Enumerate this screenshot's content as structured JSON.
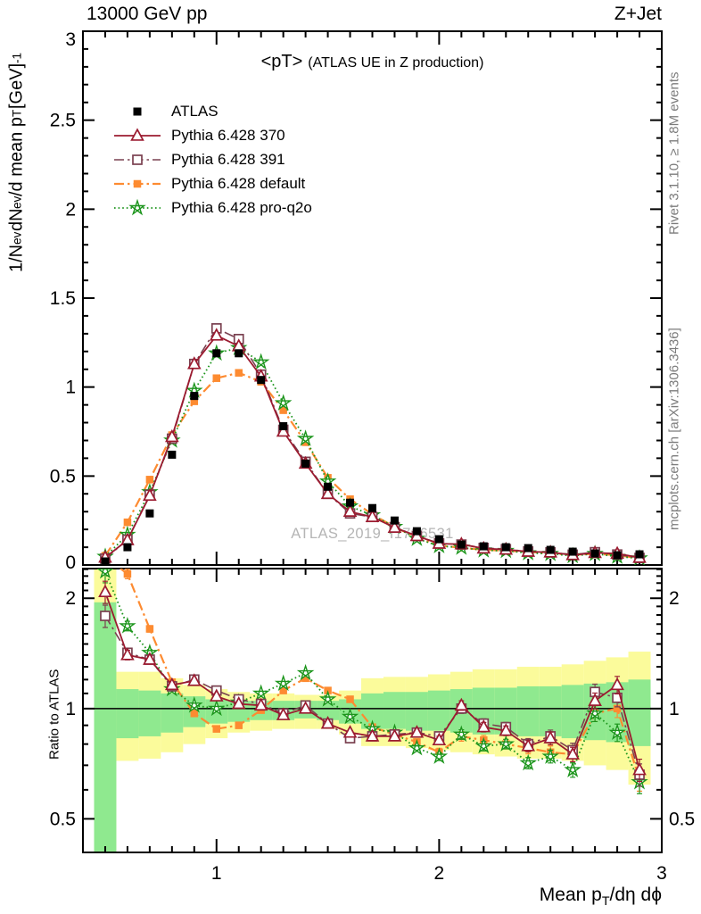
{
  "header": {
    "left": "13000 GeV pp",
    "right": "Z+Jet"
  },
  "title": {
    "main": "<pT>",
    "sub": "(ATLAS UE in Z production)"
  },
  "watermark": "ATLAS_2019_I1736531",
  "credits": {
    "top": "Rivet 3.1.10, ≥ 1.8M events",
    "bottom": "mcplots.cern.ch [arXiv:1306.3436]"
  },
  "axes": {
    "main_ylabel_parts": [
      {
        "t": "1/N"
      },
      {
        "t": "ev",
        "sub": true
      },
      {
        "t": " dN"
      },
      {
        "t": "ev",
        "sub": true
      },
      {
        "t": "/d mean p"
      },
      {
        "t": "T",
        "sub": true
      },
      {
        "t": " [GeV]"
      },
      {
        "t": "-1",
        "sup": true
      }
    ],
    "ratio_ylabel": "Ratio to ATLAS",
    "xlabel_parts": [
      {
        "t": "Mean p"
      },
      {
        "t": "T",
        "sub": true
      },
      {
        "t": "/dη dϕ"
      }
    ],
    "main_ytick_labels": [
      "0",
      "0.5",
      "1",
      "1.5",
      "2",
      "2.5",
      "3"
    ],
    "ratio_ytick_labels": [
      "0.5",
      "1",
      "2"
    ],
    "xtick_labels": [
      "1",
      "2",
      "3"
    ]
  },
  "legend": {
    "items": [
      {
        "key": "atlas",
        "label": "ATLAS"
      },
      {
        "key": "p370",
        "label": "Pythia 6.428 370"
      },
      {
        "key": "p391",
        "label": "Pythia 6.428 391"
      },
      {
        "key": "pdefault",
        "label": "Pythia 6.428 default"
      },
      {
        "key": "pq2o",
        "label": "Pythia 6.428 pro-q2o"
      }
    ]
  },
  "styles": {
    "atlas": {
      "color": "#000000",
      "marker": "square-filled",
      "size": 9,
      "line": "none",
      "width": 0
    },
    "p370": {
      "color": "#9b1b30",
      "marker": "triangle-open",
      "size": 11,
      "line": "solid",
      "width": 1.8
    },
    "p391": {
      "color": "#7a4150",
      "marker": "square-open",
      "size": 10,
      "line": "dashdot",
      "width": 1.6
    },
    "pdefault": {
      "color": "#fd8b31",
      "marker": "square-filled",
      "size": 8.5,
      "line": "dashdot",
      "width": 2.2
    },
    "pq2o": {
      "color": "#1c951c",
      "marker": "star-open",
      "size": 8,
      "line": "dotted",
      "width": 1.8
    }
  },
  "band_colors": {
    "yellow": "#fbfb9b",
    "green": "#8fe98f"
  },
  "chart_data": {
    "type": "line",
    "title": "<pT> (ATLAS UE in Z production)",
    "xlabel": "Mean pT/dη dϕ",
    "xlim": [
      0.4,
      3.0
    ],
    "xticks": [
      1,
      2,
      3
    ],
    "bin_width": 0.1,
    "x": [
      0.5,
      0.6,
      0.7,
      0.8,
      0.9,
      1.0,
      1.1,
      1.2,
      1.3,
      1.4,
      1.5,
      1.6,
      1.7,
      1.8,
      1.9,
      2.0,
      2.1,
      2.2,
      2.3,
      2.4,
      2.5,
      2.6,
      2.7,
      2.8,
      2.9
    ],
    "panels": [
      {
        "name": "main",
        "ylabel": "1/Nev dNev/d mean pT [GeV]^-1",
        "ylim": [
          0,
          3
        ],
        "ytick_step": 0.5,
        "series": [
          {
            "key": "atlas",
            "name": "ATLAS",
            "values": [
              0.02,
              0.1,
              0.29,
              0.62,
              0.95,
              1.19,
              1.19,
              1.04,
              0.78,
              0.57,
              0.44,
              0.35,
              0.32,
              0.25,
              0.19,
              0.145,
              0.115,
              0.105,
              0.1,
              0.095,
              0.085,
              0.075,
              0.065,
              0.055,
              0.06
            ]
          },
          {
            "key": "p370",
            "name": "Pythia 6.428 370",
            "values": [
              0.042,
              0.14,
              0.39,
              0.72,
              1.13,
              1.29,
              1.23,
              1.06,
              0.75,
              0.57,
              0.4,
              0.3,
              0.27,
              0.21,
              0.163,
              0.12,
              0.117,
              0.093,
              0.087,
              0.075,
              0.071,
              0.056,
              0.068,
              0.064,
              0.041
            ]
          },
          {
            "key": "p391",
            "name": "Pythia 6.428 391",
            "values": [
              0.036,
              0.142,
              0.395,
              0.71,
              1.13,
              1.33,
              1.27,
              1.07,
              0.76,
              0.58,
              0.4,
              0.29,
              0.27,
              0.213,
              0.163,
              0.122,
              0.115,
              0.096,
              0.089,
              0.076,
              0.071,
              0.058,
              0.072,
              0.059,
              0.04
            ]
          },
          {
            "key": "pdefault",
            "name": "Pythia 6.428 default",
            "values": [
              0.052,
              0.24,
              0.48,
              0.73,
              0.92,
              1.05,
              1.08,
              1.03,
              0.87,
              0.69,
              0.49,
              0.37,
              0.285,
              0.213,
              0.154,
              0.11,
              0.097,
              0.086,
              0.08,
              0.074,
              0.065,
              0.056,
              0.063,
              0.055,
              0.038
            ]
          },
          {
            "key": "pq2o",
            "name": "Pythia 6.428 pro-q2o",
            "values": [
              0.047,
              0.17,
              0.41,
              0.7,
              0.98,
              1.19,
              1.22,
              1.14,
              0.91,
              0.71,
              0.47,
              0.33,
              0.28,
              0.215,
              0.148,
              0.107,
              0.098,
              0.083,
              0.08,
              0.067,
              0.063,
              0.051,
              0.063,
              0.047,
              0.038
            ]
          }
        ]
      },
      {
        "name": "ratio",
        "ylabel": "Ratio to ATLAS",
        "yscale": "log",
        "ylim": [
          0.405,
          2.41
        ],
        "yticks": [
          0.5,
          1,
          2
        ],
        "reference": 1,
        "series": [
          {
            "key": "p370",
            "name": "Pythia 6.428 370",
            "values": [
              2.08,
              1.4,
              1.36,
              1.16,
              1.19,
              1.08,
              1.03,
              1.02,
              0.96,
              1.0,
              0.91,
              0.86,
              0.84,
              0.84,
              0.86,
              0.82,
              1.02,
              0.89,
              0.87,
              0.79,
              0.83,
              0.75,
              1.05,
              1.16,
              0.68
            ]
          },
          {
            "key": "p391",
            "name": "Pythia 6.428 391",
            "values": [
              1.79,
              1.42,
              1.36,
              1.15,
              1.2,
              1.12,
              1.06,
              1.03,
              0.97,
              1.02,
              0.91,
              0.83,
              0.84,
              0.85,
              0.86,
              0.84,
              1.0,
              0.91,
              0.89,
              0.8,
              0.84,
              0.77,
              1.11,
              1.07,
              0.66
            ]
          },
          {
            "key": "pdefault",
            "name": "Pythia 6.428 default",
            "values": [
              2.6,
              2.33,
              1.65,
              1.18,
              0.97,
              0.88,
              0.9,
              0.99,
              1.12,
              1.21,
              1.12,
              1.06,
              0.89,
              0.85,
              0.81,
              0.76,
              0.84,
              0.82,
              0.8,
              0.78,
              0.76,
              0.75,
              0.97,
              1.0,
              0.64
            ]
          },
          {
            "key": "pq2o",
            "name": "Pythia 6.428 pro-q2o",
            "values": [
              2.37,
              1.68,
              1.42,
              1.13,
              1.02,
              1.0,
              1.04,
              1.1,
              1.17,
              1.25,
              1.06,
              0.95,
              0.88,
              0.86,
              0.78,
              0.74,
              0.85,
              0.79,
              0.8,
              0.71,
              0.74,
              0.68,
              0.97,
              0.86,
              0.63
            ]
          }
        ],
        "err_frac": [
          0.07,
          0.03,
          0.02,
          0.012,
          0.012,
          0.012,
          0.012,
          0.012,
          0.012,
          0.012,
          0.012,
          0.012,
          0.012,
          0.012,
          0.02,
          0.025,
          0.03,
          0.03,
          0.03,
          0.035,
          0.04,
          0.045,
          0.05,
          0.055,
          0.07
        ],
        "bands": {
          "yellow": [
            [
              0.4,
              2.41
            ],
            [
              0.72,
              1.26
            ],
            [
              0.73,
              1.26
            ],
            [
              0.76,
              1.21
            ],
            [
              0.8,
              1.16
            ],
            [
              0.83,
              1.13
            ],
            [
              0.86,
              1.11
            ],
            [
              0.87,
              1.1
            ],
            [
              0.88,
              1.1
            ],
            [
              0.88,
              1.09
            ],
            [
              0.88,
              1.09
            ],
            [
              0.85,
              1.12
            ],
            [
              0.79,
              1.21
            ],
            [
              0.79,
              1.22
            ],
            [
              0.78,
              1.22
            ],
            [
              0.77,
              1.24
            ],
            [
              0.76,
              1.26
            ],
            [
              0.75,
              1.28
            ],
            [
              0.74,
              1.28
            ],
            [
              0.73,
              1.3
            ],
            [
              0.73,
              1.3
            ],
            [
              0.72,
              1.32
            ],
            [
              0.7,
              1.35
            ],
            [
              0.68,
              1.38
            ],
            [
              0.62,
              1.43
            ]
          ],
          "green": [
            [
              0.4,
              1.95
            ],
            [
              0.83,
              1.13
            ],
            [
              0.84,
              1.12
            ],
            [
              0.86,
              1.1
            ],
            [
              0.89,
              1.08
            ],
            [
              0.91,
              1.06
            ],
            [
              0.92,
              1.05
            ],
            [
              0.93,
              1.05
            ],
            [
              0.93,
              1.05
            ],
            [
              0.94,
              1.05
            ],
            [
              0.93,
              1.05
            ],
            [
              0.91,
              1.06
            ],
            [
              0.88,
              1.1
            ],
            [
              0.88,
              1.11
            ],
            [
              0.87,
              1.11
            ],
            [
              0.87,
              1.12
            ],
            [
              0.86,
              1.13
            ],
            [
              0.85,
              1.14
            ],
            [
              0.85,
              1.14
            ],
            [
              0.84,
              1.15
            ],
            [
              0.84,
              1.15
            ],
            [
              0.83,
              1.16
            ],
            [
              0.82,
              1.17
            ],
            [
              0.81,
              1.18
            ],
            [
              0.79,
              1.2
            ]
          ]
        }
      }
    ]
  }
}
